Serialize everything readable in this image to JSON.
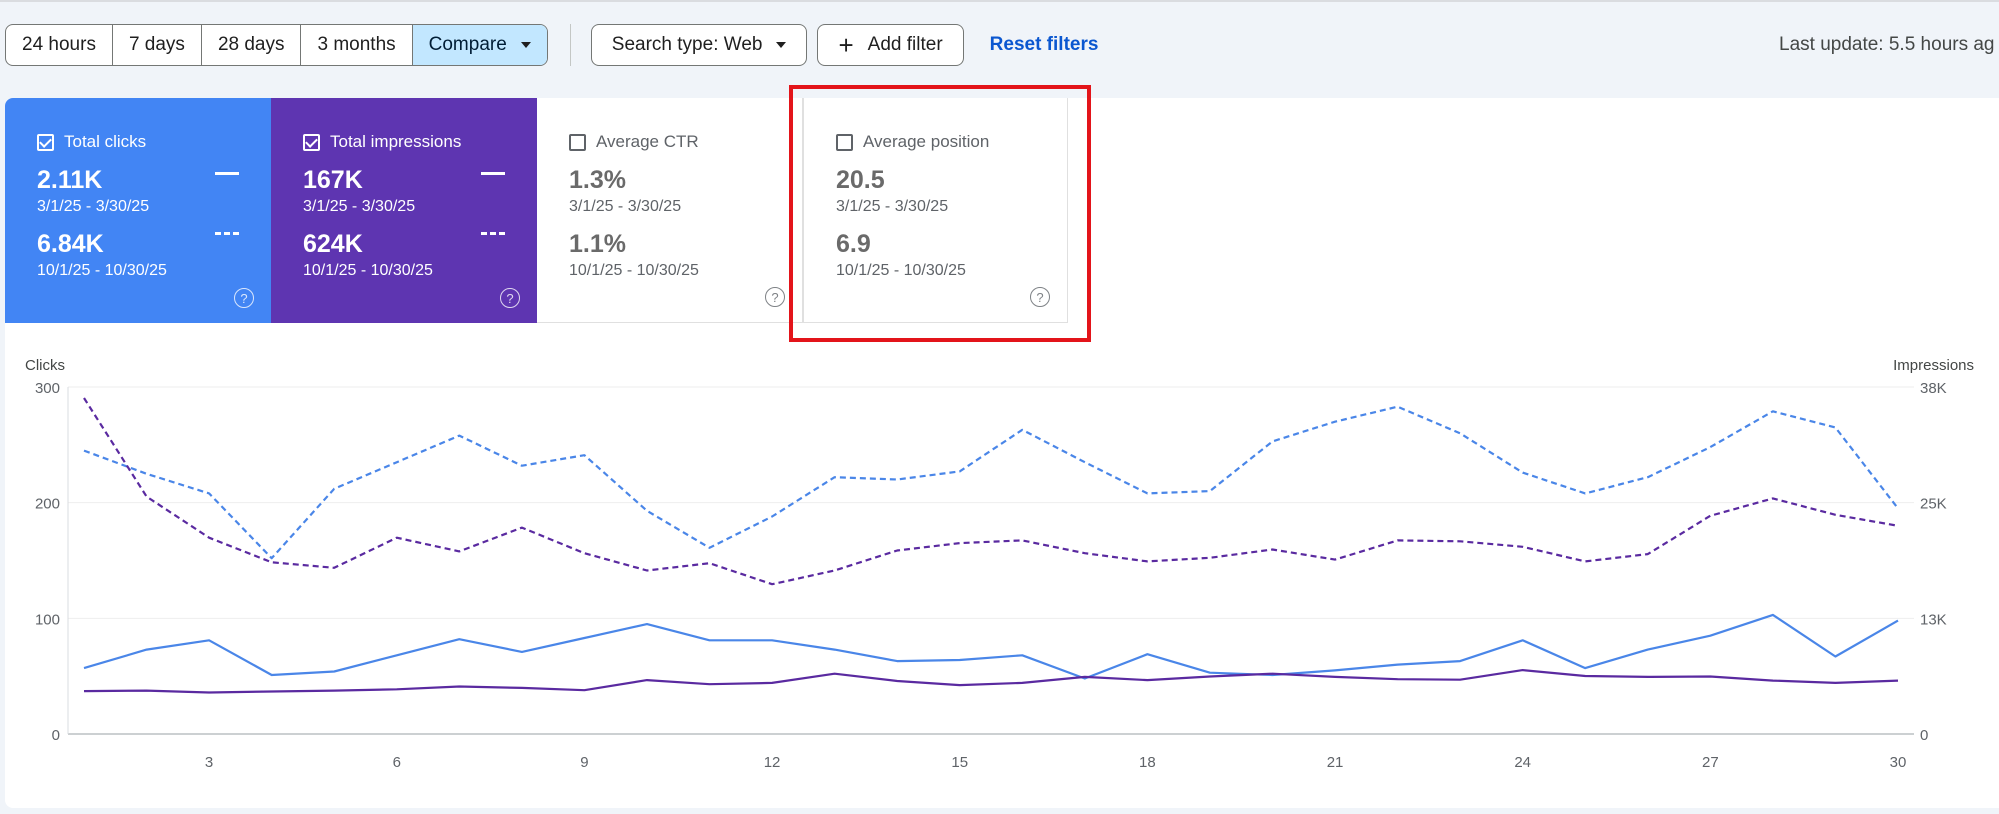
{
  "toolbar": {
    "ranges": [
      "24 hours",
      "7 days",
      "28 days",
      "3 months"
    ],
    "compare_label": "Compare",
    "search_type_label": "Search type: Web",
    "add_filter_label": "Add filter",
    "reset_filters_label": "Reset filters",
    "last_update": "Last update: 5.5 hours ag"
  },
  "metrics": {
    "clicks": {
      "label": "Total clicks",
      "checked": true,
      "value1": "2.11K",
      "range1": "3/1/25 - 3/30/25",
      "value2": "6.84K",
      "range2": "10/1/25 - 10/30/25",
      "color": "#4285f4"
    },
    "impressions": {
      "label": "Total impressions",
      "checked": true,
      "value1": "167K",
      "range1": "3/1/25 - 3/30/25",
      "value2": "624K",
      "range2": "10/1/25 - 10/30/25",
      "color": "#5e35b1"
    },
    "ctr": {
      "label": "Average CTR",
      "checked": false,
      "value1": "1.3%",
      "range1": "3/1/25 - 3/30/25",
      "value2": "1.1%",
      "range2": "10/1/25 - 10/30/25"
    },
    "position": {
      "label": "Average position",
      "checked": false,
      "value1": "20.5",
      "range1": "3/1/25 - 3/30/25",
      "value2": "6.9",
      "range2": "10/1/25 - 10/30/25"
    }
  },
  "help_glyph": "?",
  "chart_data": {
    "type": "line",
    "y_left_label": "Clicks",
    "y_right_label": "Impressions",
    "y_left_ticks": [
      "0",
      "100",
      "200",
      "300"
    ],
    "y_right_ticks": [
      "0",
      "13K",
      "25K",
      "38K"
    ],
    "ylim_left": [
      0,
      300
    ],
    "ylim_right": [
      0,
      38000
    ],
    "x_ticks": [
      "3",
      "6",
      "9",
      "12",
      "15",
      "18",
      "21",
      "24",
      "27",
      "30"
    ],
    "x": [
      1,
      2,
      3,
      4,
      5,
      6,
      7,
      8,
      9,
      10,
      11,
      12,
      13,
      14,
      15,
      16,
      17,
      18,
      19,
      20,
      21,
      22,
      23,
      24,
      25,
      26,
      27,
      28,
      29,
      30
    ],
    "grid": true,
    "series": [
      {
        "axis": "left",
        "style": "solid",
        "color": "#4a86e8",
        "values": [
          57,
          73,
          81,
          51,
          54,
          68,
          82,
          71,
          83,
          95,
          81,
          81,
          73,
          63,
          64,
          68,
          48,
          69,
          53,
          51,
          55,
          60,
          63,
          81,
          57,
          73,
          85,
          103,
          67,
          98
        ]
      },
      {
        "axis": "left",
        "style": "dashed",
        "color": "#4a86e8",
        "values": [
          245,
          225,
          208,
          152,
          212,
          235,
          258,
          232,
          241,
          193,
          161,
          188,
          222,
          220,
          227,
          263,
          235,
          208,
          210,
          253,
          270,
          283,
          260,
          226,
          208,
          222,
          248,
          279,
          265,
          195
        ]
      },
      {
        "axis": "right",
        "style": "solid",
        "color": "#5a2aa0",
        "values": [
          4700,
          4750,
          4550,
          4650,
          4750,
          4900,
          5200,
          5050,
          4800,
          5900,
          5450,
          5600,
          6600,
          5800,
          5350,
          5600,
          6250,
          5900,
          6300,
          6600,
          6250,
          6000,
          5950,
          7000,
          6350,
          6250,
          6300,
          5850,
          5600,
          5850
        ]
      },
      {
        "axis": "right",
        "style": "dashed",
        "color": "#5a2aa0",
        "values": [
          36800,
          26000,
          21500,
          18800,
          18200,
          21500,
          20000,
          22600,
          19800,
          17900,
          18700,
          16400,
          17900,
          20100,
          20900,
          21200,
          19800,
          18900,
          19300,
          20200,
          19100,
          21200,
          21100,
          20500,
          18900,
          19700,
          23900,
          25800,
          24000,
          22800
        ]
      }
    ]
  }
}
